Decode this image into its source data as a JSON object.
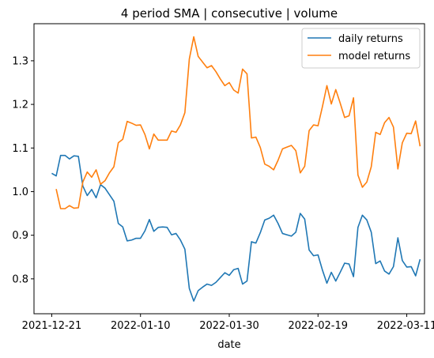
{
  "chart_data": {
    "type": "line",
    "title": "4 period SMA | consecutive | volume",
    "xlabel": "date",
    "ylabel": "",
    "x_tick_labels": [
      "2021-12-21",
      "2022-01-10",
      "2022-01-30",
      "2022-02-19",
      "2022-03-11"
    ],
    "x_tick_values": [
      0,
      20,
      40,
      60,
      80
    ],
    "x_range": [
      -4,
      84
    ],
    "y_ticks": [
      0.8,
      0.9,
      1.0,
      1.1,
      1.2,
      1.3
    ],
    "y_tick_labels": [
      "0.8",
      "0.9",
      "1.0",
      "1.1",
      "1.2",
      "1.3"
    ],
    "ylim": [
      0.72,
      1.385
    ],
    "grid": false,
    "legend_position": "top-right",
    "series": [
      {
        "name": "daily returns",
        "color": "#1f77b4",
        "x": [
          0,
          1,
          2,
          3,
          4,
          5,
          6,
          7,
          8,
          9,
          10,
          11,
          12,
          13,
          14,
          15,
          16,
          17,
          18,
          19,
          20,
          21,
          22,
          23,
          24,
          25,
          26,
          27,
          28,
          29,
          30,
          31,
          32,
          33,
          34,
          35,
          36,
          37,
          38,
          39,
          40,
          41,
          42,
          43,
          44,
          45,
          46,
          47,
          48,
          49,
          50,
          51,
          52,
          53,
          54,
          55,
          56,
          57,
          58,
          59,
          60,
          61,
          62,
          63,
          64,
          65,
          66,
          67,
          68,
          69,
          70,
          71,
          72,
          73,
          74,
          75,
          76,
          77,
          78,
          79,
          80,
          81,
          82,
          83
        ],
        "values": [
          1.042,
          1.036,
          1.083,
          1.083,
          1.075,
          1.082,
          1.081,
          1.013,
          0.991,
          1.005,
          0.986,
          1.016,
          1.008,
          0.993,
          0.978,
          0.927,
          0.919,
          0.887,
          0.889,
          0.893,
          0.893,
          0.91,
          0.936,
          0.909,
          0.918,
          0.919,
          0.918,
          0.901,
          0.904,
          0.889,
          0.868,
          0.778,
          0.749,
          0.773,
          0.781,
          0.788,
          0.785,
          0.792,
          0.803,
          0.814,
          0.808,
          0.821,
          0.824,
          0.788,
          0.795,
          0.885,
          0.882,
          0.906,
          0.935,
          0.939,
          0.946,
          0.927,
          0.904,
          0.901,
          0.898,
          0.907,
          0.95,
          0.937,
          0.866,
          0.853,
          0.855,
          0.82,
          0.79,
          0.815,
          0.795,
          0.815,
          0.836,
          0.834,
          0.805,
          0.918,
          0.946,
          0.935,
          0.907,
          0.835,
          0.841,
          0.818,
          0.811,
          0.828,
          0.894,
          0.842,
          0.827,
          0.828,
          0.807,
          0.845
        ]
      },
      {
        "name": "model returns",
        "color": "#ff7f0e",
        "x": [
          1,
          2,
          3,
          4,
          5,
          6,
          7,
          8,
          9,
          10,
          11,
          12,
          13,
          14,
          15,
          16,
          17,
          18,
          19,
          20,
          21,
          22,
          23,
          24,
          25,
          26,
          27,
          28,
          29,
          30,
          31,
          32,
          33,
          34,
          35,
          36,
          37,
          38,
          39,
          40,
          41,
          42,
          43,
          44,
          45,
          46,
          47,
          48,
          49,
          50,
          51,
          52,
          53,
          54,
          55,
          56,
          57,
          58,
          59,
          60,
          61,
          62,
          63,
          64,
          65,
          66,
          67,
          68,
          69,
          70,
          71,
          72,
          73,
          74,
          75,
          76,
          77,
          78,
          79,
          80,
          81,
          82,
          83
        ],
        "values": [
          1.006,
          0.961,
          0.961,
          0.968,
          0.962,
          0.963,
          1.022,
          1.045,
          1.033,
          1.05,
          1.017,
          1.025,
          1.043,
          1.057,
          1.112,
          1.12,
          1.161,
          1.157,
          1.152,
          1.153,
          1.131,
          1.098,
          1.132,
          1.118,
          1.118,
          1.118,
          1.139,
          1.136,
          1.153,
          1.181,
          1.304,
          1.355,
          1.31,
          1.297,
          1.284,
          1.289,
          1.275,
          1.258,
          1.243,
          1.25,
          1.233,
          1.226,
          1.281,
          1.27,
          1.123,
          1.125,
          1.101,
          1.063,
          1.058,
          1.05,
          1.072,
          1.098,
          1.102,
          1.106,
          1.094,
          1.043,
          1.058,
          1.14,
          1.153,
          1.151,
          1.195,
          1.243,
          1.201,
          1.234,
          1.203,
          1.17,
          1.174,
          1.215,
          1.038,
          1.01,
          1.022,
          1.057,
          1.136,
          1.131,
          1.158,
          1.17,
          1.148,
          1.052,
          1.112,
          1.134,
          1.133,
          1.162,
          1.104
        ]
      }
    ]
  }
}
